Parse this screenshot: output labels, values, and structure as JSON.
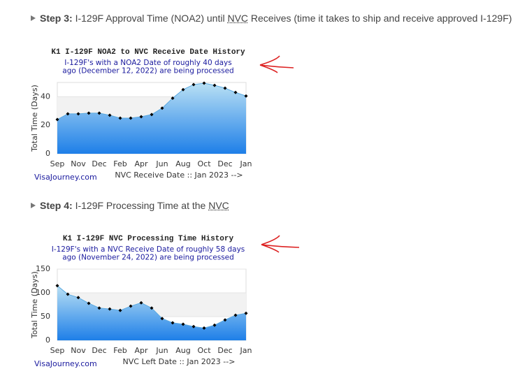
{
  "steps": [
    {
      "label": "Step 3:",
      "text": [
        "I-129F Approval Time (NOA2) until ",
        "NVC",
        " Receives (time it takes to ship and receive approved I-129F)"
      ]
    },
    {
      "label": "Step 4:",
      "text": [
        "I-129F Processing Time at the ",
        "NVC",
        ""
      ]
    }
  ],
  "chart_data": [
    {
      "type": "area",
      "title": "K1 I-129F NOA2 to NVC Receive Date History",
      "subtitle": [
        "I-129F's with a NOA2 Date of roughly 40 days",
        "ago (December 12, 2022) are being processed"
      ],
      "y_label": "Total Time (Days)",
      "x_label": "NVC Receive Date :: Jan 2023 -->",
      "source": "VisaJourney.com",
      "categories": [
        "Sep",
        null,
        "Nov",
        null,
        "Dec",
        null,
        "Feb",
        null,
        "Apr",
        null,
        "Jun",
        null,
        "Aug",
        null,
        "Oct",
        null,
        "Dec",
        null,
        "Jan"
      ],
      "values": [
        24,
        28,
        28,
        28.5,
        28.5,
        27,
        25,
        25,
        26,
        27.5,
        32,
        39,
        45,
        48.5,
        49.5,
        48,
        46,
        43,
        40.5
      ],
      "ylim": [
        0,
        50
      ],
      "yticks": [
        0,
        20,
        40
      ],
      "color": "#1e7fe8"
    },
    {
      "type": "area",
      "title": "K1 I-129F NVC Processing Time History",
      "subtitle": [
        "I-129F's with a NVC Receive Date of roughly 58 days",
        "ago (November 24, 2022) are being processed"
      ],
      "y_label": "Total Time (Days)",
      "x_label": "NVC Left Date :: Jan 2023 -->",
      "source": "VisaJourney.com",
      "categories": [
        "Sep",
        null,
        "Nov",
        null,
        "Dec",
        null,
        "Feb",
        null,
        "Apr",
        null,
        "Jun",
        null,
        "Aug",
        null,
        "Oct",
        null,
        "Dec",
        null,
        "Jan"
      ],
      "values": [
        115,
        97,
        90,
        78,
        68,
        66,
        63,
        72,
        79,
        68,
        46,
        37,
        34,
        29,
        26,
        32,
        43,
        53,
        57
      ],
      "ylim": [
        0,
        150
      ],
      "yticks": [
        0,
        50,
        100,
        150
      ],
      "color": "#1e7fe8"
    }
  ]
}
